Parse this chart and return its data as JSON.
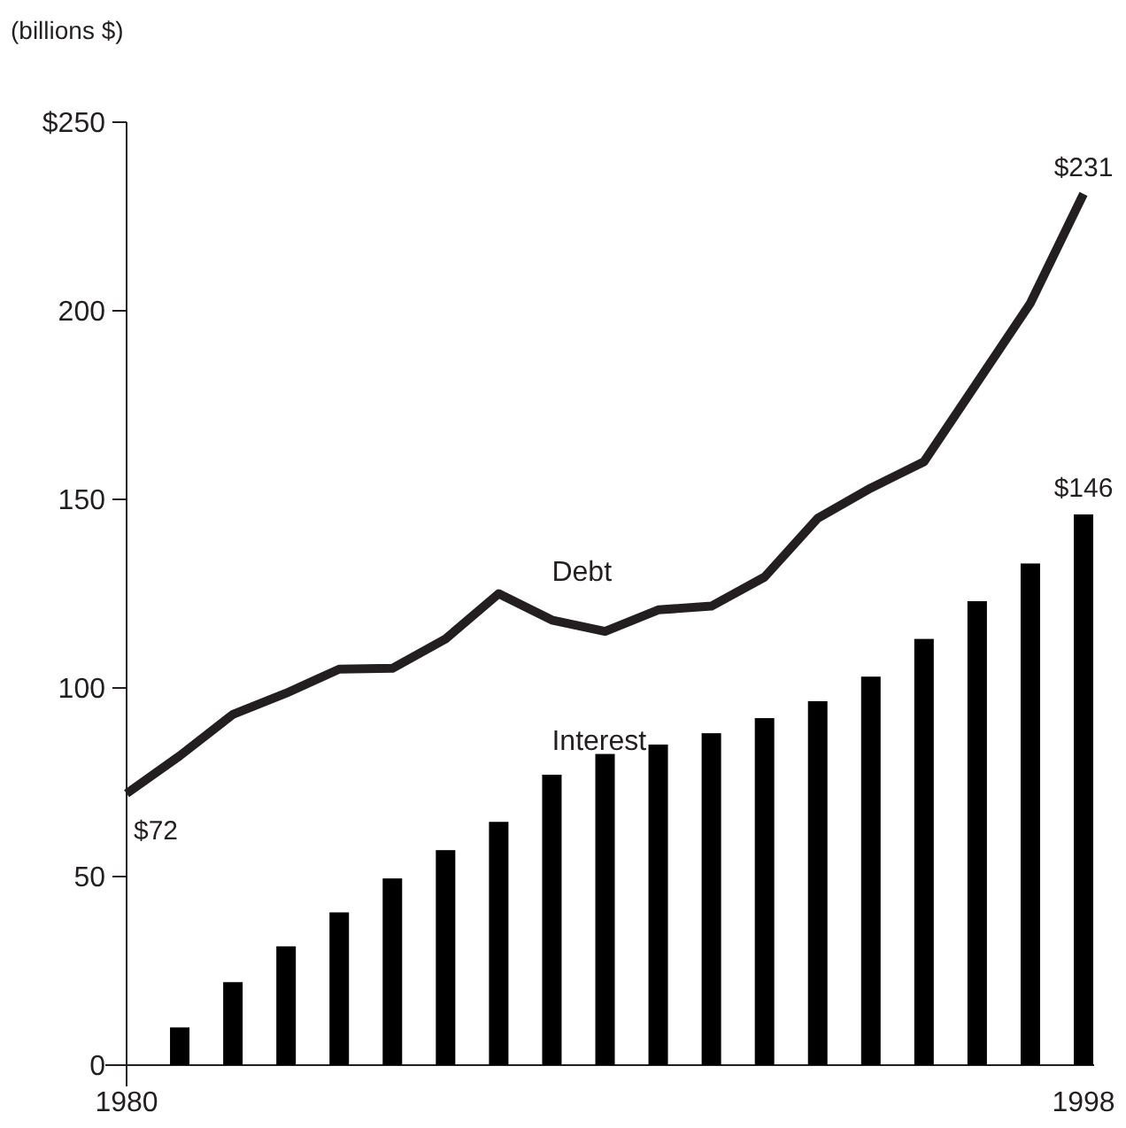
{
  "chart_data": {
    "type": "bar",
    "ylabel": "(billions $)",
    "categories": [
      "1980",
      null,
      null,
      null,
      null,
      null,
      null,
      null,
      null,
      null,
      null,
      null,
      null,
      null,
      null,
      null,
      null,
      null,
      "1998"
    ],
    "series": [
      {
        "name": "Debt",
        "type": "line",
        "color": "#231f20",
        "values": [
          72,
          82,
          93,
          98.6,
          105,
          105.2,
          113,
          125,
          118,
          115,
          120.7,
          121.7,
          129.4,
          145,
          153,
          160,
          181,
          202,
          231
        ]
      },
      {
        "name": "Interest",
        "color": "#000000",
        "values": [
          null,
          10,
          22,
          31.5,
          40.5,
          49.5,
          57,
          64.5,
          77,
          82.5,
          85,
          88,
          92,
          96.5,
          103,
          113,
          123,
          133,
          146
        ]
      }
    ],
    "ylim": [
      0,
      250
    ],
    "yticks": [
      0,
      50,
      100,
      150,
      200,
      {
        "value": 250,
        "label": "$250"
      }
    ],
    "grid": false,
    "legend": false,
    "line_style": "solid",
    "marker": "none",
    "annotations": [
      {
        "text": "$72",
        "x": "1980",
        "y": 72
      },
      {
        "text": "$231",
        "x": "1998",
        "y": 231
      },
      {
        "text": "$146",
        "x": "1998",
        "y": 146
      }
    ]
  }
}
